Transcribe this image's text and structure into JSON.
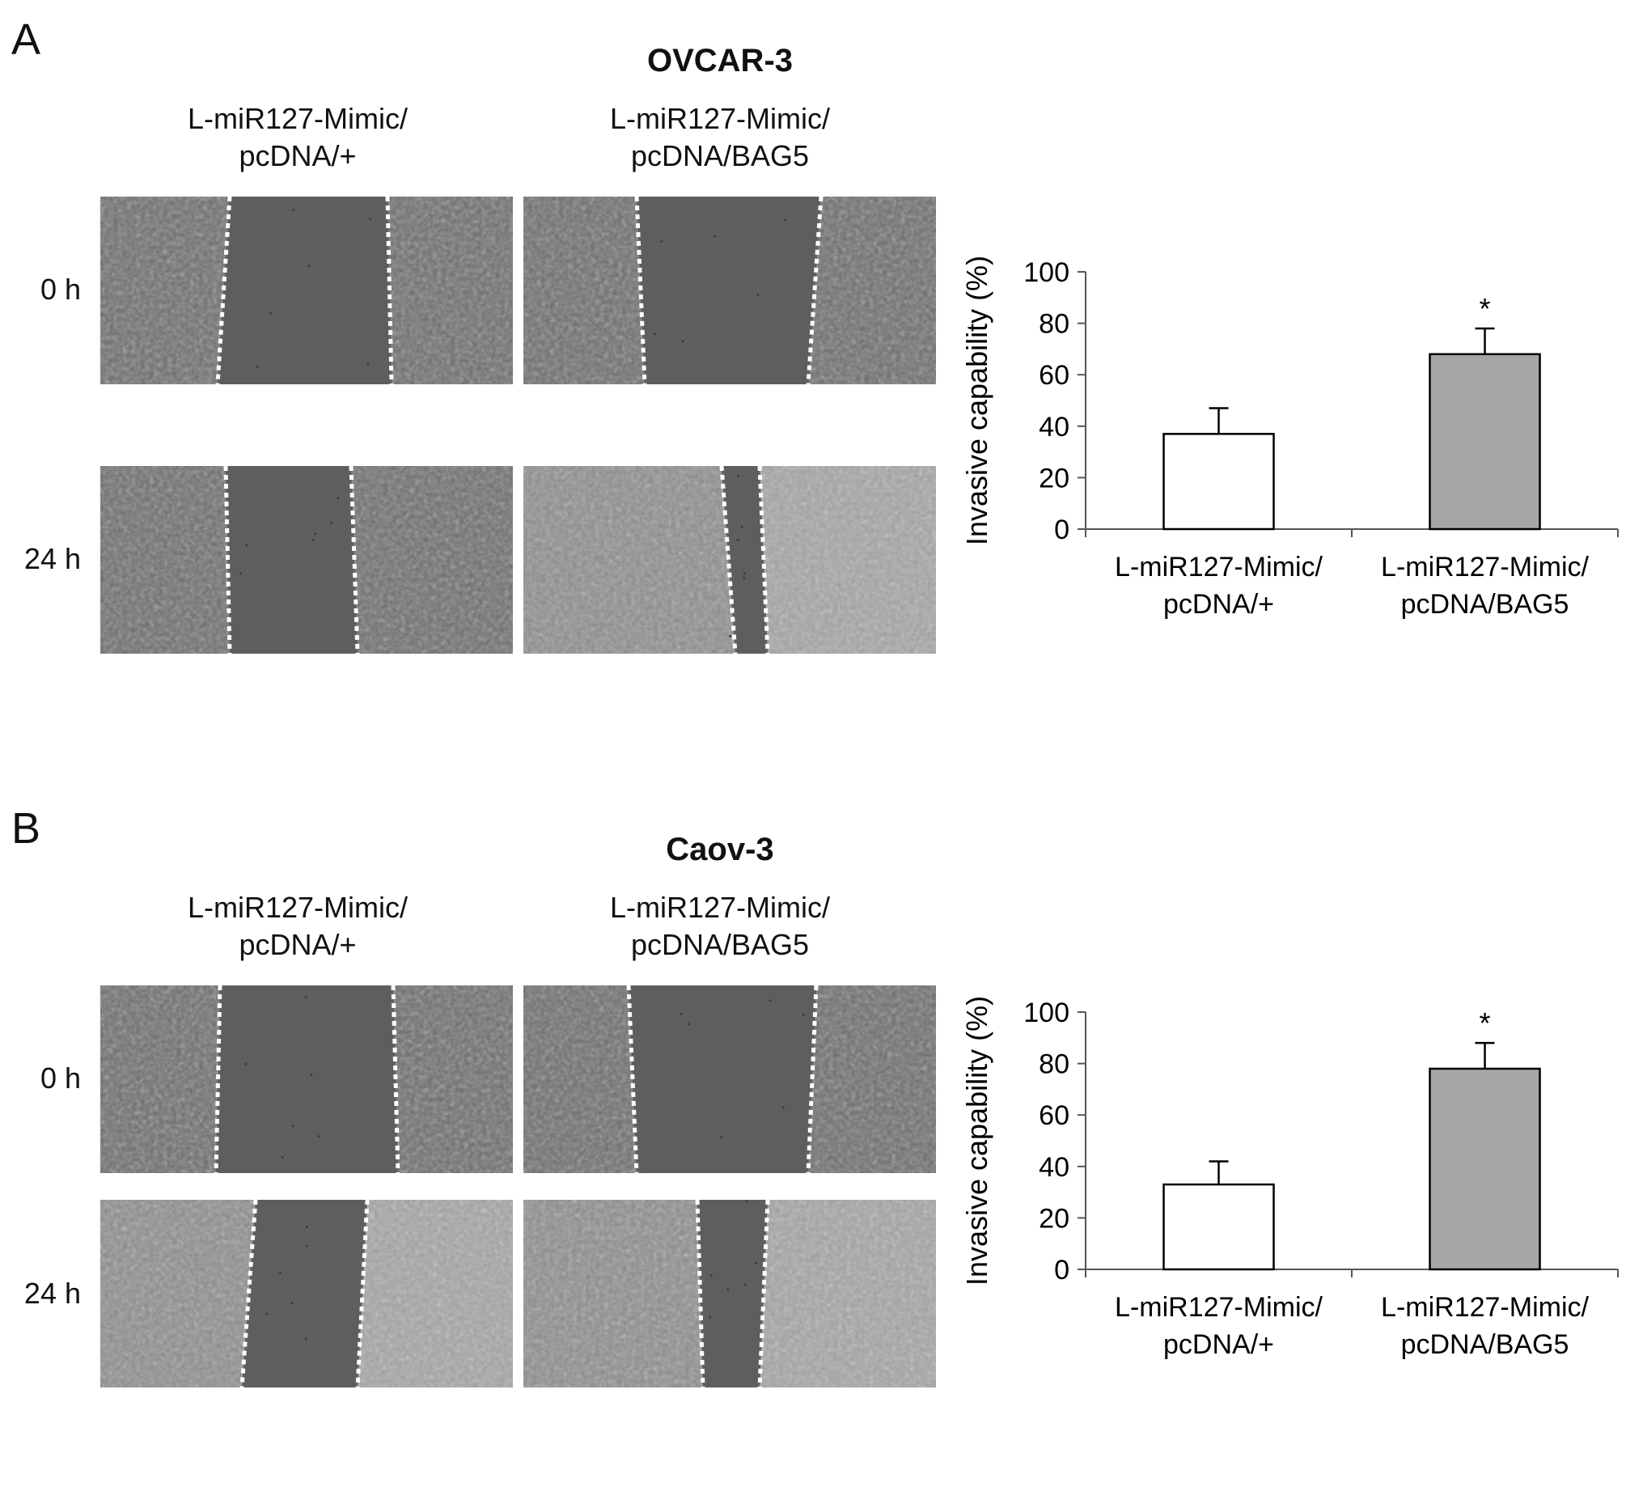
{
  "panels": [
    {
      "letter": "A",
      "title": "OVCAR-3",
      "columns": [
        "L-miR127-Mimic/\npcDNA/+",
        "L-miR127-Mimic/\npcDNA/BAG5"
      ],
      "rows": [
        "0 h",
        "24 h"
      ]
    },
    {
      "letter": "B",
      "title": "Caov-3",
      "columns": [
        "L-miR127-Mimic/\npcDNA/+",
        "L-miR127-Mimic/\npcDNA/BAG5"
      ],
      "rows": [
        "0 h",
        "24 h"
      ]
    }
  ],
  "chart_data": [
    {
      "type": "bar",
      "categories": [
        "L-miR127-Mimic/\npcDNA/+",
        "L-miR127-Mimic/\npcDNA/BAG5"
      ],
      "values": [
        37,
        68
      ],
      "errors": [
        10,
        10
      ],
      "significance": [
        "",
        "*"
      ],
      "colors": [
        "#ffffff",
        "#a6a6a6"
      ],
      "ylabel": "Invasive capability (%)",
      "ylim": [
        0,
        100
      ],
      "yticks": [
        0,
        20,
        40,
        60,
        80,
        100
      ],
      "grid": false
    },
    {
      "type": "bar",
      "categories": [
        "L-miR127-Mimic/\npcDNA/+",
        "L-miR127-Mimic/\npcDNA/BAG5"
      ],
      "values": [
        33,
        78
      ],
      "errors": [
        9,
        10
      ],
      "significance": [
        "",
        "*"
      ],
      "colors": [
        "#ffffff",
        "#a6a6a6"
      ],
      "ylabel": "Invasive capability (%)",
      "ylim": [
        0,
        100
      ],
      "yticks": [
        0,
        20,
        40,
        60,
        80,
        100
      ],
      "grid": false
    }
  ]
}
